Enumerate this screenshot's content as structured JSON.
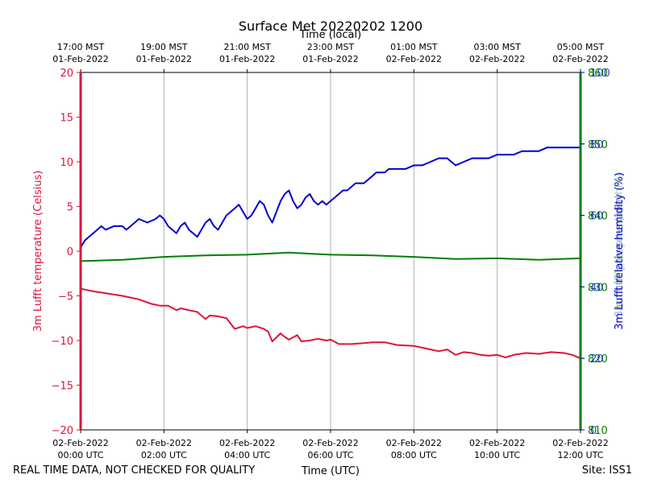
{
  "chart_data": {
    "type": "line",
    "title": "Surface Met 20220202 1200",
    "top_axis_label": "Time (local)",
    "xlabel": "Time (UTC)",
    "footer_left": "REAL TIME DATA, NOT CHECKED FOR QUALITY",
    "footer_right": "Site: ISS1",
    "x_range_hours_utc": [
      0,
      12
    ],
    "grid": "vertical",
    "bottom_ticks": [
      {
        "hour": 0,
        "date": "02-Feb-2022",
        "time": "00:00 UTC"
      },
      {
        "hour": 2,
        "date": "02-Feb-2022",
        "time": "02:00 UTC"
      },
      {
        "hour": 4,
        "date": "02-Feb-2022",
        "time": "04:00 UTC"
      },
      {
        "hour": 6,
        "date": "02-Feb-2022",
        "time": "06:00 UTC"
      },
      {
        "hour": 8,
        "date": "02-Feb-2022",
        "time": "08:00 UTC"
      },
      {
        "hour": 10,
        "date": "02-Feb-2022",
        "time": "10:00 UTC"
      },
      {
        "hour": 12,
        "date": "02-Feb-2022",
        "time": "12:00 UTC"
      }
    ],
    "top_ticks": [
      {
        "hour": 0,
        "time": "17:00 MST",
        "date": "01-Feb-2022"
      },
      {
        "hour": 2,
        "time": "19:00 MST",
        "date": "01-Feb-2022"
      },
      {
        "hour": 4,
        "time": "21:00 MST",
        "date": "01-Feb-2022"
      },
      {
        "hour": 6,
        "time": "23:00 MST",
        "date": "01-Feb-2022"
      },
      {
        "hour": 8,
        "time": "01:00 MST",
        "date": "02-Feb-2022"
      },
      {
        "hour": 10,
        "time": "03:00 MST",
        "date": "02-Feb-2022"
      },
      {
        "hour": 12,
        "time": "05:00 MST",
        "date": "02-Feb-2022"
      }
    ],
    "axes": {
      "left": {
        "label": "3m Lufft temperature (Celsius)",
        "ylim": [
          -20,
          20
        ],
        "ticks": [
          "−20",
          "−15",
          "−10",
          "−5",
          "0",
          "5",
          "10",
          "15",
          "20"
        ],
        "color": "#dc143c"
      },
      "right_green": {
        "ylim": [
          810,
          860
        ],
        "ticks": [
          "810",
          "820",
          "830",
          "840",
          "850",
          "860"
        ],
        "color": "#008000"
      },
      "right_blue": {
        "label": "3m Lufft relative humidity (%)",
        "ylim": [
          0,
          100
        ],
        "ticks": [
          "0",
          "20",
          "40",
          "60",
          "80",
          "100"
        ],
        "color": "#0000cd"
      },
      "right_overlay_labels": [
        "3m Lufft pressure (hPa)",
        "3m Lufft air pressure (hPa)"
      ]
    },
    "series": [
      {
        "axis": "left",
        "color": "#dc143c",
        "x": [
          0,
          0.1,
          0.3,
          0.6,
          1.0,
          1.4,
          1.7,
          1.9,
          2.1,
          2.3,
          2.4,
          2.6,
          2.8,
          3.0,
          3.1,
          3.3,
          3.5,
          3.7,
          3.9,
          4.0,
          4.2,
          4.4,
          4.5,
          4.6,
          4.8,
          4.9,
          5.0,
          5.2,
          5.3,
          5.5,
          5.7,
          5.9,
          6.0,
          6.2,
          6.5,
          6.8,
          7.0,
          7.3,
          7.6,
          8.0,
          8.2,
          8.4,
          8.6,
          8.8,
          9.0,
          9.2,
          9.4,
          9.6,
          9.8,
          10.0,
          10.2,
          10.4,
          10.7,
          11.0,
          11.3,
          11.6,
          11.8,
          12.0
        ],
        "y": [
          -4.2,
          -4.3,
          -4.5,
          -4.7,
          -5.0,
          -5.4,
          -5.9,
          -6.1,
          -6.1,
          -6.6,
          -6.4,
          -6.6,
          -6.8,
          -7.6,
          -7.2,
          -7.3,
          -7.5,
          -8.7,
          -8.4,
          -8.6,
          -8.4,
          -8.7,
          -9.0,
          -10.1,
          -9.2,
          -9.6,
          -9.9,
          -9.4,
          -10.1,
          -10.0,
          -9.8,
          -10.0,
          -9.9,
          -10.4,
          -10.4,
          -10.3,
          -10.2,
          -10.2,
          -10.5,
          -10.6,
          -10.8,
          -11.0,
          -11.2,
          -11.0,
          -11.6,
          -11.3,
          -11.4,
          -11.6,
          -11.7,
          -11.6,
          -11.9,
          -11.6,
          -11.4,
          -11.5,
          -11.3,
          -11.4,
          -11.6,
          -12.0
        ]
      },
      {
        "axis": "right_green",
        "color": "#008000",
        "x": [
          0,
          1,
          2,
          3,
          4,
          5,
          6,
          7,
          8,
          9,
          10,
          11,
          12
        ],
        "y": [
          833.6,
          833.8,
          834.2,
          834.4,
          834.5,
          834.8,
          834.5,
          834.4,
          834.2,
          833.9,
          834.0,
          833.8,
          834.0
        ]
      },
      {
        "axis": "right_blue",
        "color": "#0000cd",
        "x": [
          0,
          0.1,
          0.2,
          0.3,
          0.4,
          0.5,
          0.6,
          0.8,
          1.0,
          1.1,
          1.3,
          1.4,
          1.6,
          1.8,
          1.9,
          2.0,
          2.1,
          2.2,
          2.3,
          2.4,
          2.5,
          2.6,
          2.7,
          2.8,
          2.9,
          3.0,
          3.1,
          3.2,
          3.3,
          3.4,
          3.5,
          3.6,
          3.7,
          3.8,
          3.9,
          4.0,
          4.1,
          4.2,
          4.3,
          4.4,
          4.5,
          4.6,
          4.7,
          4.8,
          4.9,
          5.0,
          5.1,
          5.2,
          5.3,
          5.4,
          5.5,
          5.6,
          5.7,
          5.8,
          5.9,
          6.0,
          6.1,
          6.2,
          6.3,
          6.4,
          6.5,
          6.6,
          6.7,
          6.8,
          6.9,
          7.0,
          7.1,
          7.2,
          7.3,
          7.4,
          7.6,
          7.8,
          8.0,
          8.2,
          8.4,
          8.6,
          8.8,
          9.0,
          9.2,
          9.4,
          9.6,
          9.8,
          10.0,
          10.2,
          10.4,
          10.6,
          10.8,
          11.0,
          11.2,
          11.4,
          11.6,
          11.8,
          12.0
        ],
        "y": [
          51,
          53,
          54,
          55,
          56,
          57,
          56,
          57,
          57,
          56,
          58,
          59,
          58,
          59,
          60,
          59,
          57,
          56,
          55,
          57,
          58,
          56,
          55,
          54,
          56,
          58,
          59,
          57,
          56,
          58,
          60,
          61,
          62,
          63,
          61,
          59,
          60,
          62,
          64,
          63,
          60,
          58,
          61,
          64,
          66,
          67,
          64,
          62,
          63,
          65,
          66,
          64,
          63,
          64,
          63,
          64,
          65,
          66,
          67,
          67,
          68,
          69,
          69,
          69,
          70,
          71,
          72,
          72,
          72,
          73,
          73,
          73,
          74,
          74,
          75,
          76,
          76,
          74,
          75,
          76,
          76,
          76,
          77,
          77,
          77,
          78,
          78,
          78,
          79,
          79,
          79,
          79,
          79
        ]
      }
    ]
  }
}
